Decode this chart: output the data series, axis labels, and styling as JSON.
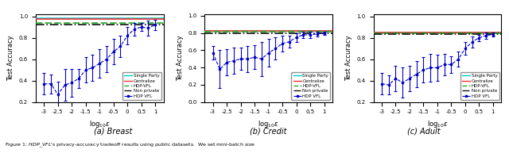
{
  "subplot_titles": [
    "(a) Breast",
    "(b) Credit",
    "(c) Adult"
  ],
  "ylabel": "Test Accuracy",
  "x_ticks": [
    -3.0,
    -2.5,
    -2.0,
    -1.5,
    -1.0,
    -0.5,
    0.0,
    0.5,
    1.0
  ],
  "x_tick_labels": [
    "-3",
    "-2.5",
    "-2",
    "-1.5",
    "-1",
    "-0.5",
    "0",
    "0.5",
    "1"
  ],
  "xlim": [
    -3.3,
    1.3
  ],
  "figure_caption": "Figure 1: HDP VFL's privacy-accuracy tradeoff results using public datasets. We set mini-batch size",
  "line_colors": {
    "single_party": "#00cccc",
    "centralize": "#ee3333",
    "hdp_vfl_line": "#22aa22",
    "non_private": "#111111",
    "hdp_vfl_curve": "#0000cc"
  },
  "breast": {
    "ylim": [
      0.2,
      1.02
    ],
    "yticks": [
      0.2,
      0.4,
      0.6,
      0.8,
      1.0
    ],
    "single_party": 0.978,
    "centralize": 0.972,
    "hdp_vfl_line": 0.94,
    "non_private": 0.922,
    "x": [
      -3.0,
      -2.75,
      -2.5,
      -2.25,
      -2.0,
      -1.75,
      -1.5,
      -1.25,
      -1.0,
      -0.75,
      -0.5,
      -0.25,
      0.0,
      0.25,
      0.5,
      0.75,
      1.0
    ],
    "y": [
      0.37,
      0.37,
      0.27,
      0.36,
      0.38,
      0.42,
      0.5,
      0.52,
      0.56,
      0.6,
      0.67,
      0.72,
      0.82,
      0.88,
      0.9,
      0.89,
      0.92
    ],
    "yerr": [
      0.1,
      0.09,
      0.12,
      0.15,
      0.13,
      0.09,
      0.12,
      0.12,
      0.13,
      0.12,
      0.12,
      0.1,
      0.08,
      0.06,
      0.04,
      0.07,
      0.05
    ]
  },
  "credit": {
    "ylim": [
      0.0,
      1.02
    ],
    "yticks": [
      0.0,
      0.2,
      0.4,
      0.6,
      0.8,
      1.0
    ],
    "single_party": 0.822,
    "centralize": 0.826,
    "hdp_vfl_line": 0.812,
    "non_private": 0.8,
    "x": [
      -3.0,
      -2.75,
      -2.5,
      -2.25,
      -2.0,
      -1.75,
      -1.5,
      -1.25,
      -1.0,
      -0.75,
      -0.5,
      -0.25,
      0.0,
      0.25,
      0.5,
      0.75,
      1.0
    ],
    "y": [
      0.57,
      0.38,
      0.46,
      0.48,
      0.5,
      0.5,
      0.52,
      0.5,
      0.57,
      0.62,
      0.68,
      0.7,
      0.75,
      0.78,
      0.78,
      0.79,
      0.8
    ],
    "yerr": [
      0.08,
      0.22,
      0.15,
      0.15,
      0.13,
      0.15,
      0.14,
      0.2,
      0.16,
      0.13,
      0.09,
      0.07,
      0.05,
      0.04,
      0.04,
      0.03,
      0.02
    ]
  },
  "adult": {
    "ylim": [
      0.2,
      1.02
    ],
    "yticks": [
      0.2,
      0.4,
      0.6,
      0.8,
      1.0
    ],
    "single_party": 0.852,
    "centralize": 0.85,
    "hdp_vfl_line": 0.842,
    "non_private": 0.832,
    "x": [
      -3.0,
      -2.75,
      -2.5,
      -2.25,
      -2.0,
      -1.75,
      -1.5,
      -1.25,
      -1.0,
      -0.75,
      -0.5,
      -0.25,
      0.0,
      0.25,
      0.5,
      0.75,
      1.0
    ],
    "y": [
      0.37,
      0.36,
      0.42,
      0.38,
      0.42,
      0.46,
      0.5,
      0.52,
      0.52,
      0.55,
      0.55,
      0.6,
      0.7,
      0.76,
      0.8,
      0.82,
      0.83
    ],
    "yerr": [
      0.1,
      0.09,
      0.12,
      0.14,
      0.12,
      0.12,
      0.12,
      0.13,
      0.12,
      0.1,
      0.08,
      0.07,
      0.06,
      0.05,
      0.03,
      0.03,
      0.02
    ]
  },
  "legend": {
    "labels": [
      "Single Party",
      "Centralize",
      "HDP-VFL",
      "Non private",
      "HDP VFL"
    ],
    "fontsize": 4.0
  }
}
